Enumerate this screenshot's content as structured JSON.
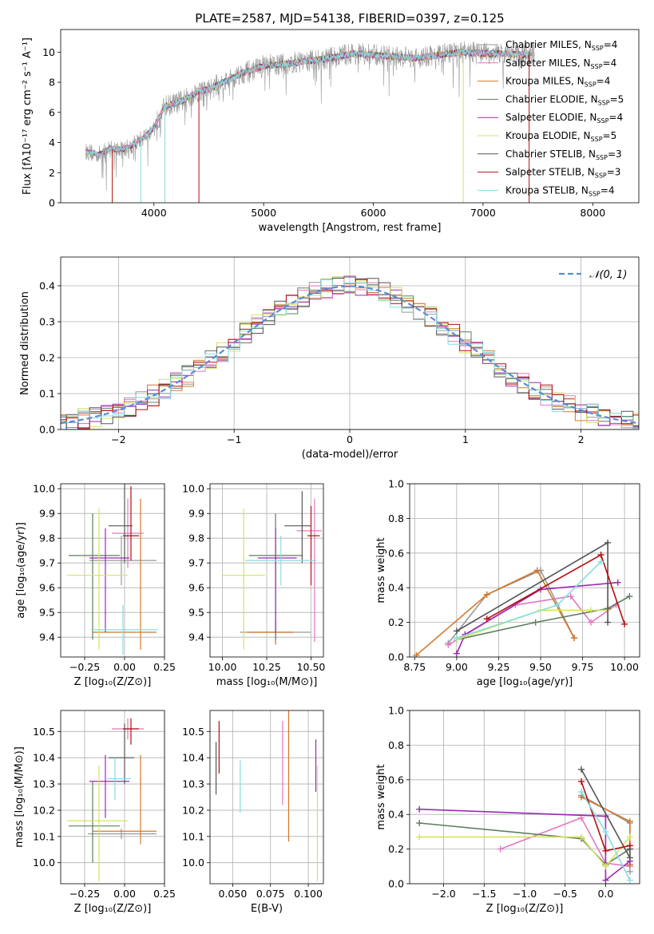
{
  "colors": {
    "Chabrier MILES": "#999999",
    "Salpeter MILES": "#e377c2",
    "Kroupa MILES": "#d2782a",
    "Chabrier ELODIE": "#5f7f5f",
    "Salpeter ELODIE": "#9b28b4",
    "Kroupa ELODIE": "#d6e45c",
    "Chabrier STELIB": "#555555",
    "Salpeter STELIB": "#b40f0f",
    "Kroupa STELIB": "#86dde0"
  },
  "chart_data": [
    {
      "id": "spectrum",
      "type": "line",
      "title": "PLATE=2587, MJD=54138, FIBERID=0397, z=0.125",
      "xlabel": "wavelength [Angstrom, rest frame]",
      "ylabel": "Flux [fλ10⁻¹⁷ erg cm⁻² s⁻¹ A⁻¹]",
      "xlim": [
        3150,
        8420
      ],
      "ylim": [
        0,
        11.5
      ],
      "xticks": [
        "4000",
        "5000",
        "6000",
        "7000",
        "8000"
      ],
      "yticks": [
        "0",
        "2",
        "4",
        "6",
        "8",
        "10"
      ],
      "grid": false,
      "legend_position": "upper-right",
      "continuum": [
        [
          3380,
          3.4
        ],
        [
          3500,
          3.2
        ],
        [
          3600,
          3.6
        ],
        [
          3700,
          3.5
        ],
        [
          3800,
          3.8
        ],
        [
          3900,
          4.3
        ],
        [
          4000,
          5.0
        ],
        [
          4100,
          6.4
        ],
        [
          4200,
          6.6
        ],
        [
          4300,
          6.9
        ],
        [
          4400,
          7.4
        ],
        [
          4500,
          7.5
        ],
        [
          4600,
          7.9
        ],
        [
          4700,
          8.2
        ],
        [
          4800,
          8.6
        ],
        [
          4900,
          8.8
        ],
        [
          5000,
          9.1
        ],
        [
          5200,
          9.2
        ],
        [
          5400,
          9.4
        ],
        [
          5600,
          9.6
        ],
        [
          5800,
          9.9
        ],
        [
          6000,
          9.8
        ],
        [
          6200,
          9.7
        ],
        [
          6400,
          9.6
        ],
        [
          6600,
          9.8
        ],
        [
          6800,
          10.0
        ],
        [
          7000,
          9.9
        ],
        [
          7200,
          9.9
        ],
        [
          7400,
          9.8
        ],
        [
          7450,
          10.0
        ]
      ],
      "legend": [
        {
          "label": "Chabrier MILES, N",
          "sub": "SSP",
          "suffix": "=4"
        },
        {
          "label": "Salpeter MILES, N",
          "sub": "SSP",
          "suffix": "=4"
        },
        {
          "label": "Kroupa MILES, N",
          "sub": "SSP",
          "suffix": "=4"
        },
        {
          "label": "Chabrier ELODIE, N",
          "sub": "SSP",
          "suffix": "=5"
        },
        {
          "label": "Salpeter ELODIE, N",
          "sub": "SSP",
          "suffix": "=4"
        },
        {
          "label": "Kroupa ELODIE, N",
          "sub": "SSP",
          "suffix": "=5"
        },
        {
          "label": "Chabrier STELIB, N",
          "sub": "SSP",
          "suffix": "=3"
        },
        {
          "label": "Salpeter STELIB, N",
          "sub": "SSP",
          "suffix": "=3"
        },
        {
          "label": "Kroupa STELIB, N",
          "sub": "SSP",
          "suffix": "=4"
        }
      ]
    },
    {
      "id": "residuals",
      "type": "bar",
      "xlabel": "(data-model)/error",
      "ylabel": "Normed distribution",
      "xlim": [
        -2.5,
        2.5
      ],
      "ylim": [
        0,
        0.48
      ],
      "xticks": [
        "−2",
        "−1",
        "0",
        "1",
        "2"
      ],
      "yticks": [
        "0.0",
        "0.1",
        "0.2",
        "0.3",
        "0.4"
      ],
      "grid": true,
      "bin_width": 0.1,
      "legend": [
        {
          "label": "𝒩(0, 1)",
          "color": "#5b8bd6"
        }
      ]
    },
    {
      "id": "age-vs-z",
      "type": "scatter",
      "xlabel": "Z [log₁₀(Z/Z⊙)]",
      "ylabel": "age  [log₁₀(age/yr)]",
      "xlim": [
        -0.4,
        0.25
      ],
      "ylim": [
        9.32,
        10.02
      ],
      "xticks": [
        "−0.25",
        "0.00",
        "0.25"
      ],
      "yticks": [
        "9.4",
        "9.5",
        "9.6",
        "9.7",
        "9.8",
        "9.9",
        "10.0"
      ],
      "grid": true,
      "points": [
        {
          "model": "Chabrier MILES",
          "x": -0.02,
          "xerr": [
            0.2,
            0.22
          ],
          "y": 9.71,
          "yerr": [
            0.1,
            0.1
          ]
        },
        {
          "model": "Salpeter MILES",
          "x": 0.02,
          "xerr": [
            0.1,
            0.1
          ],
          "y": 9.82,
          "yerr": [
            0.14,
            0.14
          ]
        },
        {
          "model": "Kroupa MILES",
          "x": 0.1,
          "xerr": [
            0.3,
            0.1
          ],
          "y": 9.42,
          "yerr": [
            0.07,
            0.54
          ]
        },
        {
          "model": "Chabrier ELODIE",
          "x": -0.2,
          "xerr": [
            0.15,
            0.17
          ],
          "y": 9.73,
          "yerr": [
            0.34,
            0.17
          ]
        },
        {
          "model": "Salpeter ELODIE",
          "x": -0.12,
          "xerr": [
            0.1,
            0.15
          ],
          "y": 9.72,
          "yerr": [
            0.3,
            0.12
          ]
        },
        {
          "model": "Kroupa ELODIE",
          "x": -0.16,
          "xerr": [
            0.2,
            0.18
          ],
          "y": 9.65,
          "yerr": [
            0.3,
            0.27
          ]
        },
        {
          "model": "Chabrier STELIB",
          "x": 0.0,
          "xerr": [
            0.1,
            0.05
          ],
          "y": 9.85,
          "yerr": [
            0.15,
            0.17
          ]
        },
        {
          "model": "Salpeter STELIB",
          "x": 0.04,
          "xerr": [
            0.05,
            0.05
          ],
          "y": 9.81,
          "yerr": [
            0.1,
            0.2
          ]
        },
        {
          "model": "Kroupa STELIB",
          "x": -0.01,
          "xerr": [
            0.2,
            0.22
          ],
          "y": 9.43,
          "yerr": [
            0.1,
            0.1
          ]
        }
      ]
    },
    {
      "id": "age-vs-mass",
      "type": "scatter",
      "xlabel": "mass [log₁₀(M/M⊙)]",
      "ylabel": "",
      "xlim": [
        9.93,
        10.57
      ],
      "ylim": [
        9.32,
        10.02
      ],
      "xticks": [
        "10.00",
        "10.25",
        "10.50"
      ],
      "yticks": [
        "9.4",
        "9.5",
        "9.6",
        "9.7",
        "9.8",
        "9.9",
        "10.0"
      ],
      "grid": true,
      "points": [
        {
          "model": "Chabrier MILES",
          "x": 10.3,
          "xerr": [
            0.2,
            0.2
          ],
          "y": 9.42,
          "yerr": [
            0.05,
            0.05
          ]
        },
        {
          "model": "Salpeter MILES",
          "x": 10.52,
          "xerr": [
            0.1,
            0.04
          ],
          "y": 9.83,
          "yerr": [
            0.45,
            0.13
          ]
        },
        {
          "model": "Kroupa MILES",
          "x": 10.3,
          "xerr": [
            0.16,
            0.1
          ],
          "y": 9.42,
          "yerr": [
            0.05,
            0.05
          ]
        },
        {
          "model": "Chabrier ELODIE",
          "x": 10.3,
          "xerr": [
            0.15,
            0.15
          ],
          "y": 9.73,
          "yerr": [
            0.34,
            0.17
          ]
        },
        {
          "model": "Salpeter ELODIE",
          "x": 10.3,
          "xerr": [
            0.1,
            0.12
          ],
          "y": 9.72,
          "yerr": [
            0.3,
            0.12
          ]
        },
        {
          "model": "Kroupa ELODIE",
          "x": 10.12,
          "xerr": [
            0.12,
            0.12
          ],
          "y": 9.65,
          "yerr": [
            0.3,
            0.27
          ]
        },
        {
          "model": "Chabrier STELIB",
          "x": 10.45,
          "xerr": [
            0.1,
            0.05
          ],
          "y": 9.85,
          "yerr": [
            0.15,
            0.14
          ]
        },
        {
          "model": "Salpeter STELIB",
          "x": 10.5,
          "xerr": [
            0.02,
            0.05
          ],
          "y": 9.81,
          "yerr": [
            0.2,
            0.12
          ]
        },
        {
          "model": "Kroupa STELIB",
          "x": 10.33,
          "xerr": [
            0.2,
            0.2
          ],
          "y": 9.71,
          "yerr": [
            0.1,
            0.1
          ]
        }
      ]
    },
    {
      "id": "weight-vs-age",
      "type": "line",
      "xlabel": "age  [log₁₀(age/yr)]",
      "ylabel": "mass weight",
      "xlim": [
        8.72,
        10.09
      ],
      "ylim": [
        0,
        1
      ],
      "xticks": [
        "8.75",
        "9.00",
        "9.25",
        "9.50",
        "9.75",
        "10.00"
      ],
      "yticks": [
        "0.0",
        "0.2",
        "0.4",
        "0.6",
        "0.8",
        "1.0"
      ],
      "grid": true,
      "series": [
        {
          "model": "Chabrier MILES",
          "x": [
            8.95,
            9.18,
            9.5,
            9.7
          ],
          "y": [
            0.08,
            0.36,
            0.5,
            0.11
          ]
        },
        {
          "model": "Salpeter MILES",
          "x": [
            8.95,
            9.35,
            9.68,
            9.8,
            9.95
          ],
          "y": [
            0.07,
            0.3,
            0.35,
            0.2,
            0.3
          ]
        },
        {
          "model": "Kroupa MILES",
          "x": [
            8.76,
            9.18,
            9.48,
            9.7
          ],
          "y": [
            0.01,
            0.36,
            0.5,
            0.11
          ]
        },
        {
          "model": "Chabrier ELODIE",
          "x": [
            9.0,
            9.47,
            9.9,
            10.03
          ],
          "y": [
            0.1,
            0.2,
            0.28,
            0.35
          ]
        },
        {
          "model": "Salpeter ELODIE",
          "x": [
            9.0,
            9.05,
            9.5,
            9.96
          ],
          "y": [
            0.02,
            0.13,
            0.39,
            0.43
          ]
        },
        {
          "model": "Kroupa ELODIE",
          "x": [
            9.0,
            9.5,
            9.8,
            9.9
          ],
          "y": [
            0.1,
            0.27,
            0.27,
            0.27
          ]
        },
        {
          "model": "Chabrier STELIB",
          "x": [
            9.0,
            9.9,
            9.9
          ],
          "y": [
            0.15,
            0.66,
            0.2
          ]
        },
        {
          "model": "Salpeter STELIB",
          "x": [
            9.18,
            9.86,
            10.0
          ],
          "y": [
            0.22,
            0.59,
            0.19
          ]
        },
        {
          "model": "Kroupa STELIB",
          "x": [
            9.0,
            9.6,
            9.86
          ],
          "y": [
            0.11,
            0.3,
            0.55
          ]
        }
      ]
    },
    {
      "id": "mass-vs-z",
      "type": "scatter",
      "xlabel": "Z [log₁₀(Z/Z⊙)]",
      "ylabel": "mass [log₁₀(M/M⊙)]",
      "xlim": [
        -0.4,
        0.25
      ],
      "ylim": [
        9.92,
        10.58
      ],
      "xticks": [
        "−0.25",
        "0.00",
        "0.25"
      ],
      "yticks": [
        "10.0",
        "10.1",
        "10.2",
        "10.3",
        "10.4",
        "10.5"
      ],
      "grid": true,
      "points": [
        {
          "model": "Chabrier MILES",
          "x": -0.02,
          "xerr": [
            0.21,
            0.22
          ],
          "y": 10.11,
          "yerr": [
            0.02,
            0.02
          ]
        },
        {
          "model": "Salpeter MILES",
          "x": 0.02,
          "xerr": [
            0.1,
            0.1
          ],
          "y": 10.51,
          "yerr": [
            0.04,
            0.04
          ]
        },
        {
          "model": "Kroupa MILES",
          "x": 0.1,
          "xerr": [
            0.3,
            0.1
          ],
          "y": 10.12,
          "yerr": [
            0.05,
            0.29
          ]
        },
        {
          "model": "Chabrier ELODIE",
          "x": -0.2,
          "xerr": [
            0.15,
            0.17
          ],
          "y": 10.14,
          "yerr": [
            0.14,
            0.17
          ]
        },
        {
          "model": "Salpeter ELODIE",
          "x": -0.12,
          "xerr": [
            0.1,
            0.15
          ],
          "y": 10.31,
          "yerr": [
            0.14,
            0.1
          ]
        },
        {
          "model": "Kroupa ELODIE",
          "x": -0.16,
          "xerr": [
            0.2,
            0.18
          ],
          "y": 10.16,
          "yerr": [
            0.23,
            0.21
          ]
        },
        {
          "model": "Chabrier STELIB",
          "x": 0.0,
          "xerr": [
            0.1,
            0.06
          ],
          "y": 10.4,
          "yerr": [
            0.1,
            0.13
          ]
        },
        {
          "model": "Salpeter STELIB",
          "x": 0.04,
          "xerr": [
            0.05,
            0.05
          ],
          "y": 10.51,
          "yerr": [
            0.06,
            0.04
          ]
        },
        {
          "model": "Kroupa STELIB",
          "x": -0.06,
          "xerr": [
            0.05,
            0.1
          ],
          "y": 10.32,
          "yerr": [
            0.08,
            0.08
          ]
        }
      ]
    },
    {
      "id": "mass-vs-ebv",
      "type": "scatter",
      "xlabel": "E(B-V)",
      "ylabel": "",
      "xlim": [
        0.035,
        0.11
      ],
      "ylim": [
        9.92,
        10.58
      ],
      "xticks": [
        "0.050",
        "0.075",
        "0.100"
      ],
      "yticks": [
        "10.0",
        "10.1",
        "10.2",
        "10.3",
        "10.4",
        "10.5"
      ],
      "grid": true,
      "points": [
        {
          "model": "Chabrier STELIB",
          "x": 0.039,
          "yerr": [
            0.1,
            0.1
          ],
          "y": 10.36
        },
        {
          "model": "Salpeter STELIB",
          "x": 0.041,
          "yerr": [
            0.1,
            0.1
          ],
          "y": 10.44
        },
        {
          "model": "Kroupa STELIB",
          "x": 0.055,
          "yerr": [
            0.1,
            0.1
          ],
          "y": 10.29
        },
        {
          "model": "Salpeter MILES",
          "x": 0.083,
          "yerr": [
            0.16,
            0.16
          ],
          "y": 10.38
        },
        {
          "model": "Kroupa MILES",
          "x": 0.087,
          "yerr": [
            0.28,
            0.28
          ],
          "y": 10.36
        },
        {
          "model": "Salpeter ELODIE",
          "x": 0.105,
          "yerr": [
            0.1,
            0.1
          ],
          "y": 10.37
        },
        {
          "model": "Kroupa ELODIE",
          "x": 0.106,
          "yerr": [
            0.22,
            0.22
          ],
          "y": 10.15
        }
      ]
    },
    {
      "id": "weight-vs-z",
      "type": "line",
      "xlabel": "Z [log₁₀(Z/Z⊙)]",
      "ylabel": "mass weight",
      "xlim": [
        -2.42,
        0.42
      ],
      "ylim": [
        0,
        1
      ],
      "xticks": [
        "−2.0",
        "−1.5",
        "−1.0",
        "−0.5",
        "0.0"
      ],
      "yticks": [
        "0.0",
        "0.2",
        "0.4",
        "0.6",
        "0.8",
        "1.0"
      ],
      "grid": true,
      "series": [
        {
          "model": "Chabrier MILES",
          "x": [
            -0.3,
            0.3,
            0.3
          ],
          "y": [
            0.51,
            0.35,
            0.07
          ]
        },
        {
          "model": "Salpeter MILES",
          "x": [
            -1.3,
            -0.3,
            0.0,
            0.3
          ],
          "y": [
            0.2,
            0.38,
            0.12,
            0.1
          ]
        },
        {
          "model": "Kroupa MILES",
          "x": [
            -0.3,
            0.3,
            0.3
          ],
          "y": [
            0.5,
            0.36,
            0.11
          ]
        },
        {
          "model": "Chabrier ELODIE",
          "x": [
            -2.3,
            -0.3,
            0.0,
            0.3
          ],
          "y": [
            0.35,
            0.26,
            0.11,
            0.2
          ]
        },
        {
          "model": "Salpeter ELODIE",
          "x": [
            -2.3,
            0.0,
            0.0,
            0.3
          ],
          "y": [
            0.43,
            0.39,
            0.02,
            0.13
          ]
        },
        {
          "model": "Kroupa ELODIE",
          "x": [
            -2.3,
            -0.3,
            0.0,
            0.3
          ],
          "y": [
            0.27,
            0.27,
            0.1,
            0.27
          ]
        },
        {
          "model": "Chabrier STELIB",
          "x": [
            -0.3,
            0.3,
            0.3
          ],
          "y": [
            0.66,
            0.15,
            0.2
          ]
        },
        {
          "model": "Salpeter STELIB",
          "x": [
            -0.3,
            0.0,
            0.3
          ],
          "y": [
            0.59,
            0.19,
            0.22
          ]
        },
        {
          "model": "Kroupa STELIB",
          "x": [
            -0.3,
            0.0,
            0.3
          ],
          "y": [
            0.53,
            0.3,
            0.02
          ]
        }
      ]
    }
  ]
}
